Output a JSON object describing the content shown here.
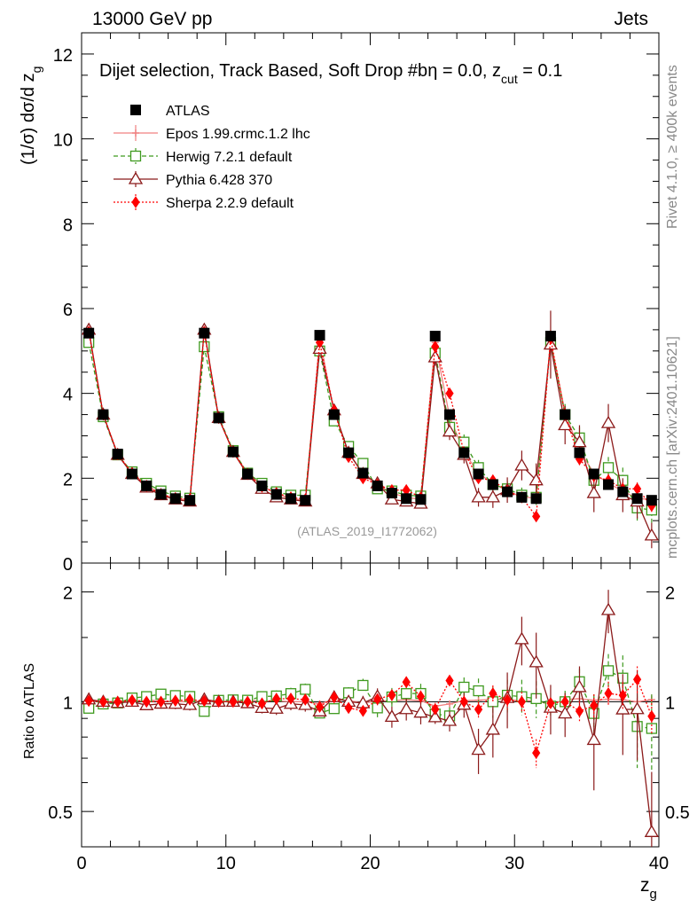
{
  "header": {
    "energy_label": "13000 GeV pp",
    "category_label": "Jets",
    "rivet_label": "Rivet 4.1.0, ≥ 400k events",
    "mcplots_label": "mcplots.cern.ch [arXiv:2401.10621]",
    "analysis_id": "(ATLAS_2019_I1772062)"
  },
  "chart_data": {
    "type": "line",
    "title": "Dijet selection, Track Based, Soft Drop #b",
    "title_tail": "η = 0.0, z",
    "title_sub": "cut",
    "title_end": " = 0.1",
    "ylabel_main": "(1/σ) dσ/d z",
    "ylabel_main_sub": "g",
    "ylabel_ratio": "Ratio to ATLAS",
    "xlabel": "z",
    "xlabel_sub": "g",
    "xlim": [
      0,
      40
    ],
    "ylim_main": [
      0,
      12.5
    ],
    "ylim_ratio": [
      0.4,
      2.4
    ],
    "x_ticks": [
      0,
      10,
      20,
      30,
      40
    ],
    "y_ticks_main": [
      0,
      2,
      4,
      6,
      8,
      10,
      12
    ],
    "y_ticks_ratio": [
      0.5,
      1,
      2
    ],
    "x": [
      0.5,
      1.5,
      2.5,
      3.5,
      4.5,
      5.5,
      6.5,
      7.5,
      8.5,
      9.5,
      10.5,
      11.5,
      12.5,
      13.5,
      14.5,
      15.5,
      16.5,
      17.5,
      18.5,
      19.5,
      20.5,
      21.5,
      22.5,
      23.5,
      24.5,
      25.5,
      26.5,
      27.5,
      28.5,
      29.5,
      30.5,
      31.5,
      32.5,
      33.5,
      34.5,
      35.5,
      36.5,
      37.5,
      38.5,
      39.5
    ],
    "data": {
      "name": "ATLAS",
      "values": [
        5.42,
        3.5,
        2.57,
        2.1,
        1.82,
        1.62,
        1.52,
        1.48,
        5.42,
        3.42,
        2.62,
        2.1,
        1.82,
        1.62,
        1.52,
        1.48,
        5.37,
        3.5,
        2.6,
        2.12,
        1.82,
        1.65,
        1.52,
        1.5,
        5.35,
        3.5,
        2.6,
        2.1,
        1.85,
        1.68,
        1.55,
        1.52,
        5.35,
        3.5,
        2.6,
        2.1,
        1.85,
        1.68,
        1.52,
        1.48
      ],
      "errors": [
        0.05,
        0.05,
        0.04,
        0.04,
        0.04,
        0.04,
        0.04,
        0.04,
        0.05,
        0.05,
        0.04,
        0.04,
        0.04,
        0.04,
        0.04,
        0.04,
        0.06,
        0.05,
        0.05,
        0.04,
        0.04,
        0.04,
        0.04,
        0.04,
        0.07,
        0.06,
        0.05,
        0.05,
        0.05,
        0.05,
        0.05,
        0.05,
        0.08,
        0.07,
        0.06,
        0.06,
        0.06,
        0.06,
        0.06,
        0.06
      ]
    },
    "series": [
      {
        "name": "Epos 1.99.crmc.1.2 lhc",
        "color": "#f08080",
        "marker": "cross",
        "dash": "",
        "values": [
          5.45,
          3.5,
          2.57,
          2.11,
          1.84,
          1.63,
          1.52,
          1.48,
          5.45,
          3.42,
          2.63,
          2.12,
          1.83,
          1.63,
          1.52,
          1.48,
          5.3,
          3.55,
          2.62,
          2.1,
          1.83,
          1.66,
          1.54,
          1.51,
          5.2,
          3.45,
          2.62,
          2.12,
          1.88,
          1.7,
          1.56,
          1.53,
          5.25,
          3.55,
          2.65,
          2.12,
          1.88,
          1.7,
          1.52,
          1.5
        ],
        "errors": [
          0.02,
          0.02,
          0.02,
          0.02,
          0.02,
          0.02,
          0.02,
          0.02,
          0.02,
          0.02,
          0.02,
          0.02,
          0.02,
          0.02,
          0.02,
          0.02,
          0.03,
          0.03,
          0.03,
          0.03,
          0.03,
          0.03,
          0.03,
          0.03,
          0.04,
          0.04,
          0.04,
          0.04,
          0.04,
          0.04,
          0.04,
          0.04,
          0.05,
          0.05,
          0.05,
          0.05,
          0.05,
          0.05,
          0.05,
          0.05
        ]
      },
      {
        "name": "Herwig 7.2.1 default",
        "color": "#3f9a1f",
        "marker": "square",
        "dash": "5,3",
        "values": [
          5.2,
          3.45,
          2.55,
          2.15,
          1.88,
          1.7,
          1.58,
          1.53,
          5.1,
          3.45,
          2.65,
          2.12,
          1.88,
          1.68,
          1.6,
          1.6,
          5.0,
          3.35,
          2.75,
          2.35,
          1.75,
          1.7,
          1.6,
          1.58,
          4.95,
          3.2,
          2.85,
          2.25,
          1.85,
          1.75,
          1.6,
          1.55,
          5.2,
          3.5,
          2.95,
          1.95,
          2.25,
          1.95,
          1.3,
          1.25
        ],
        "errors": [
          0.06,
          0.05,
          0.05,
          0.05,
          0.05,
          0.05,
          0.05,
          0.05,
          0.08,
          0.06,
          0.06,
          0.06,
          0.06,
          0.06,
          0.06,
          0.06,
          0.12,
          0.1,
          0.1,
          0.1,
          0.1,
          0.1,
          0.1,
          0.1,
          0.18,
          0.18,
          0.18,
          0.18,
          0.18,
          0.18,
          0.18,
          0.18,
          0.3,
          0.25,
          0.25,
          0.25,
          0.25,
          0.3,
          0.3,
          0.3
        ]
      },
      {
        "name": "Pythia 6.428 370",
        "color": "#8b1a1a",
        "marker": "triangle",
        "dash": "",
        "values": [
          5.5,
          3.5,
          2.55,
          2.1,
          1.78,
          1.6,
          1.5,
          1.45,
          5.5,
          3.42,
          2.62,
          2.08,
          1.75,
          1.55,
          1.5,
          1.45,
          5.05,
          3.6,
          2.6,
          2.1,
          1.88,
          1.5,
          1.45,
          1.4,
          4.85,
          3.1,
          2.55,
          1.55,
          1.55,
          1.72,
          2.3,
          1.95,
          5.15,
          3.25,
          2.85,
          1.65,
          3.3,
          1.6,
          1.45,
          0.65
        ],
        "errors": [
          0.05,
          0.05,
          0.05,
          0.05,
          0.05,
          0.05,
          0.05,
          0.05,
          0.07,
          0.06,
          0.06,
          0.06,
          0.06,
          0.06,
          0.06,
          0.06,
          0.1,
          0.1,
          0.1,
          0.1,
          0.1,
          0.1,
          0.1,
          0.1,
          0.2,
          0.2,
          0.2,
          0.22,
          0.25,
          0.3,
          0.35,
          0.4,
          0.8,
          0.45,
          0.4,
          0.45,
          0.45,
          0.4,
          0.4,
          0.3
        ]
      },
      {
        "name": "Sherpa 2.2.9 default",
        "color": "#ff0000",
        "marker": "diamond",
        "dash": "2,2",
        "values": [
          5.45,
          3.5,
          2.57,
          2.12,
          1.82,
          1.62,
          1.53,
          1.5,
          5.45,
          3.42,
          2.62,
          2.1,
          1.8,
          1.65,
          1.55,
          1.5,
          5.2,
          3.6,
          2.5,
          2.0,
          1.85,
          1.72,
          1.72,
          1.55,
          5.1,
          4.0,
          2.6,
          2.0,
          1.95,
          1.7,
          1.55,
          1.1,
          5.3,
          3.5,
          2.45,
          2.05,
          1.95,
          1.75,
          1.75,
          1.35
        ],
        "errors": [
          0.03,
          0.03,
          0.03,
          0.03,
          0.03,
          0.03,
          0.03,
          0.03,
          0.04,
          0.04,
          0.04,
          0.04,
          0.04,
          0.04,
          0.04,
          0.04,
          0.06,
          0.06,
          0.06,
          0.06,
          0.06,
          0.06,
          0.06,
          0.06,
          0.1,
          0.1,
          0.1,
          0.1,
          0.1,
          0.1,
          0.1,
          0.1,
          0.15,
          0.15,
          0.15,
          0.15,
          0.15,
          0.15,
          0.15,
          0.15
        ]
      }
    ]
  }
}
